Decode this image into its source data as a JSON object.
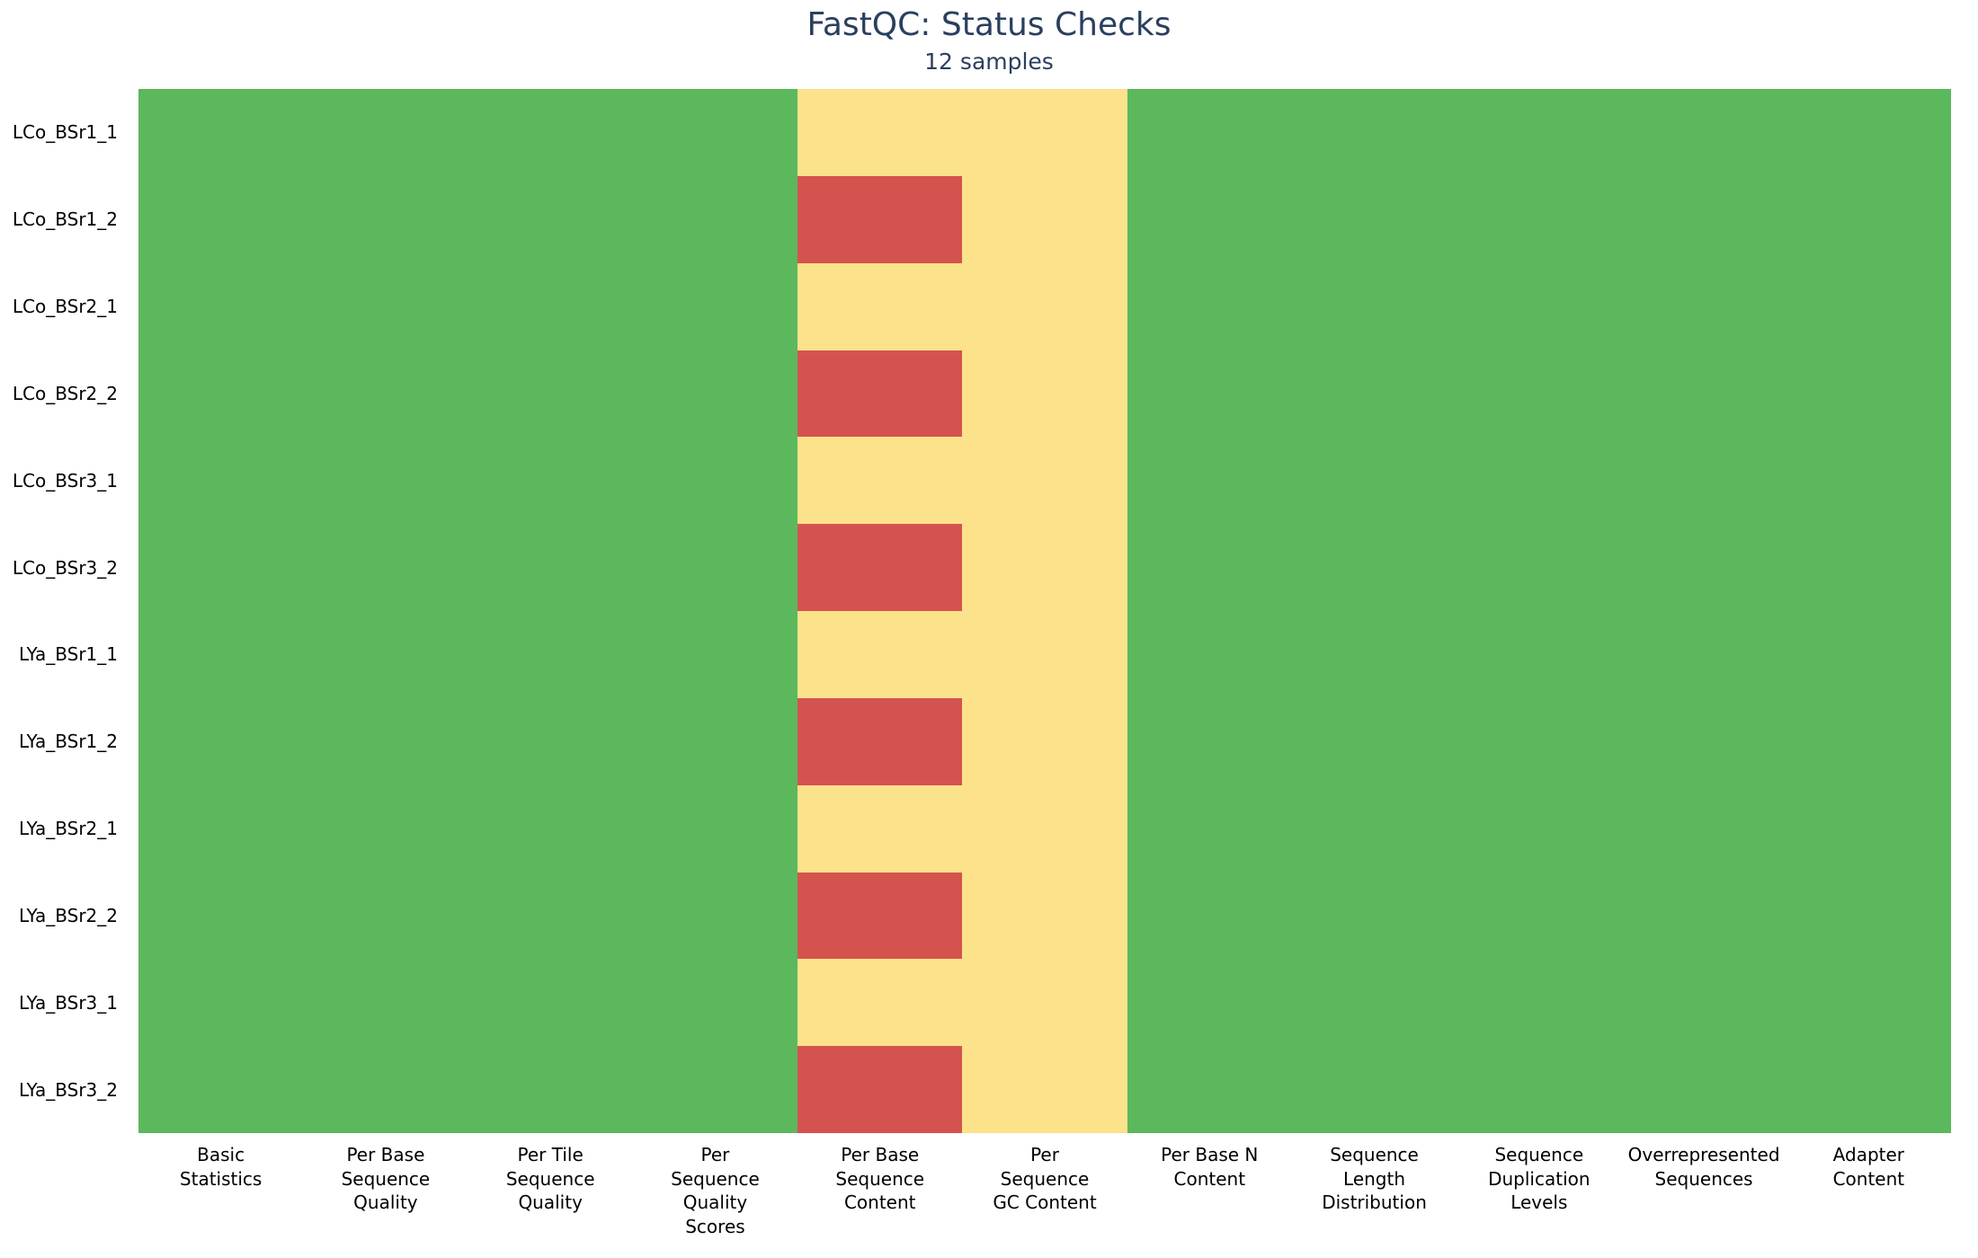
{
  "header": {
    "title": "FastQC: Status Checks",
    "subtitle": "12 samples"
  },
  "chart_data": {
    "type": "heatmap",
    "title": "FastQC: Status Checks",
    "subtitle": "12 samples",
    "title_color": "#2a3f5f",
    "grid": false,
    "legend_position": "none",
    "rows": [
      "LCo_BSr1_1",
      "LCo_BSr1_2",
      "LCo_BSr2_1",
      "LCo_BSr2_2",
      "LCo_BSr3_1",
      "LCo_BSr3_2",
      "LYa_BSr1_1",
      "LYa_BSr1_2",
      "LYa_BSr2_1",
      "LYa_BSr2_2",
      "LYa_BSr3_1",
      "LYa_BSr3_2"
    ],
    "columns": [
      "Basic Statistics",
      "Per Base Sequence Quality",
      "Per Tile Sequence Quality",
      "Per Sequence Quality Scores",
      "Per Base Sequence Content",
      "Per Sequence GC Content",
      "Per Base N Content",
      "Sequence Length Distribution",
      "Sequence Duplication Levels",
      "Overrepresented Sequences",
      "Adapter Content"
    ],
    "column_label_lines": [
      [
        "Basic",
        "Statistics"
      ],
      [
        "Per Base",
        "Sequence",
        "Quality"
      ],
      [
        "Per Tile",
        "Sequence",
        "Quality"
      ],
      [
        "Per",
        "Sequence",
        "Quality",
        "Scores"
      ],
      [
        "Per Base",
        "Sequence",
        "Content"
      ],
      [
        "Per",
        "Sequence",
        "GC Content"
      ],
      [
        "Per Base N",
        "Content"
      ],
      [
        "Sequence",
        "Length",
        "Distribution"
      ],
      [
        "Sequence",
        "Duplication",
        "Levels"
      ],
      [
        "Overrepresented",
        "Sequences"
      ],
      [
        "Adapter",
        "Content"
      ]
    ],
    "status_colors": {
      "pass": "#5bb85c",
      "warn": "#fde28c",
      "fail": "#d5534f"
    },
    "matrix": [
      [
        "pass",
        "pass",
        "pass",
        "pass",
        "warn",
        "warn",
        "pass",
        "pass",
        "pass",
        "pass",
        "pass"
      ],
      [
        "pass",
        "pass",
        "pass",
        "pass",
        "fail",
        "warn",
        "pass",
        "pass",
        "pass",
        "pass",
        "pass"
      ],
      [
        "pass",
        "pass",
        "pass",
        "pass",
        "warn",
        "warn",
        "pass",
        "pass",
        "pass",
        "pass",
        "pass"
      ],
      [
        "pass",
        "pass",
        "pass",
        "pass",
        "fail",
        "warn",
        "pass",
        "pass",
        "pass",
        "pass",
        "pass"
      ],
      [
        "pass",
        "pass",
        "pass",
        "pass",
        "warn",
        "warn",
        "pass",
        "pass",
        "pass",
        "pass",
        "pass"
      ],
      [
        "pass",
        "pass",
        "pass",
        "pass",
        "fail",
        "warn",
        "pass",
        "pass",
        "pass",
        "pass",
        "pass"
      ],
      [
        "pass",
        "pass",
        "pass",
        "pass",
        "warn",
        "warn",
        "pass",
        "pass",
        "pass",
        "pass",
        "pass"
      ],
      [
        "pass",
        "pass",
        "pass",
        "pass",
        "fail",
        "warn",
        "pass",
        "pass",
        "pass",
        "pass",
        "pass"
      ],
      [
        "pass",
        "pass",
        "pass",
        "pass",
        "warn",
        "warn",
        "pass",
        "pass",
        "pass",
        "pass",
        "pass"
      ],
      [
        "pass",
        "pass",
        "pass",
        "pass",
        "fail",
        "warn",
        "pass",
        "pass",
        "pass",
        "pass",
        "pass"
      ],
      [
        "pass",
        "pass",
        "pass",
        "pass",
        "warn",
        "warn",
        "pass",
        "pass",
        "pass",
        "pass",
        "pass"
      ],
      [
        "pass",
        "pass",
        "pass",
        "pass",
        "fail",
        "warn",
        "pass",
        "pass",
        "pass",
        "pass",
        "pass"
      ]
    ]
  }
}
